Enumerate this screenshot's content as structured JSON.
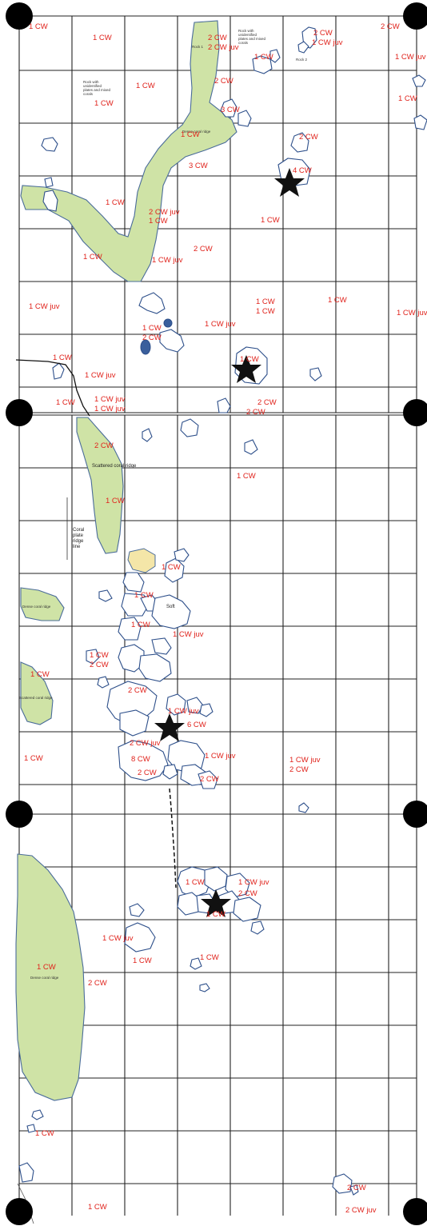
{
  "legend_labels": {
    "top_a": "Rock 1",
    "top_b": "Rock with\nunidentified\nplates and mixed\ncorals",
    "top_c": "Rock with\nunidentified\nplates and mixed\ncorals",
    "top_d": "Rock with unidentified plates and mixed corals",
    "top_e": "Rock 2",
    "top_f": "Dense coral ridge",
    "mid_a": "Scattered coral ridge",
    "mid_b": "Coral\nplate\nridge\nline",
    "mid_c": "Dense coral ridge",
    "mid_d": "Scattered coral ridge",
    "mid_e": "Soft",
    "bot_a": "Dense coral ridge"
  },
  "cw_labels": [
    "1 CW",
    "1 CW",
    "2 CW",
    "2 CW juv",
    "1 CW",
    "2 CW",
    "1 CW juv",
    "2 CW",
    "1 CW",
    "1 CW",
    "2 CW",
    "1 CW juv",
    "3 CW",
    "1 CW",
    "1 CW",
    "3 CW",
    "4 CW",
    "2 CW",
    "1 CW",
    "2 CW juv",
    "1 CW",
    "1 CW",
    "1 CW",
    "1 CW juv",
    "2 CW",
    "1 CW juv",
    "1 CW",
    "1 CW",
    "1 CW",
    "1 CW juv",
    "1 CW",
    "2 CW",
    "1 CW juv",
    "1 CW",
    "1 CW juv",
    "1 CW",
    "1 CW",
    "1 CW juv",
    "1 CW juv",
    "2 CW",
    "2 CW",
    "2 CW",
    "1 CW",
    "1 CW",
    "1 CW",
    "1 CW",
    "1 CW",
    "1 CW juv",
    "1 CW",
    "2 CW",
    "1 CW",
    "2 CW",
    "1 CW juv",
    "6 CW",
    "2 CW juv",
    "8 CW",
    "2 CW",
    "1 CW juv",
    "2 CW",
    "1 CW",
    "1 CW juv",
    "2 CW",
    "1 CW",
    "1 CW juv",
    "2 CW",
    "1 CW",
    "1 CW juv",
    "1 CW",
    "1 CW",
    "1 CW",
    "2 CW",
    "1 CW",
    "2 CW",
    "2 CW juv",
    "1 CW"
  ]
}
